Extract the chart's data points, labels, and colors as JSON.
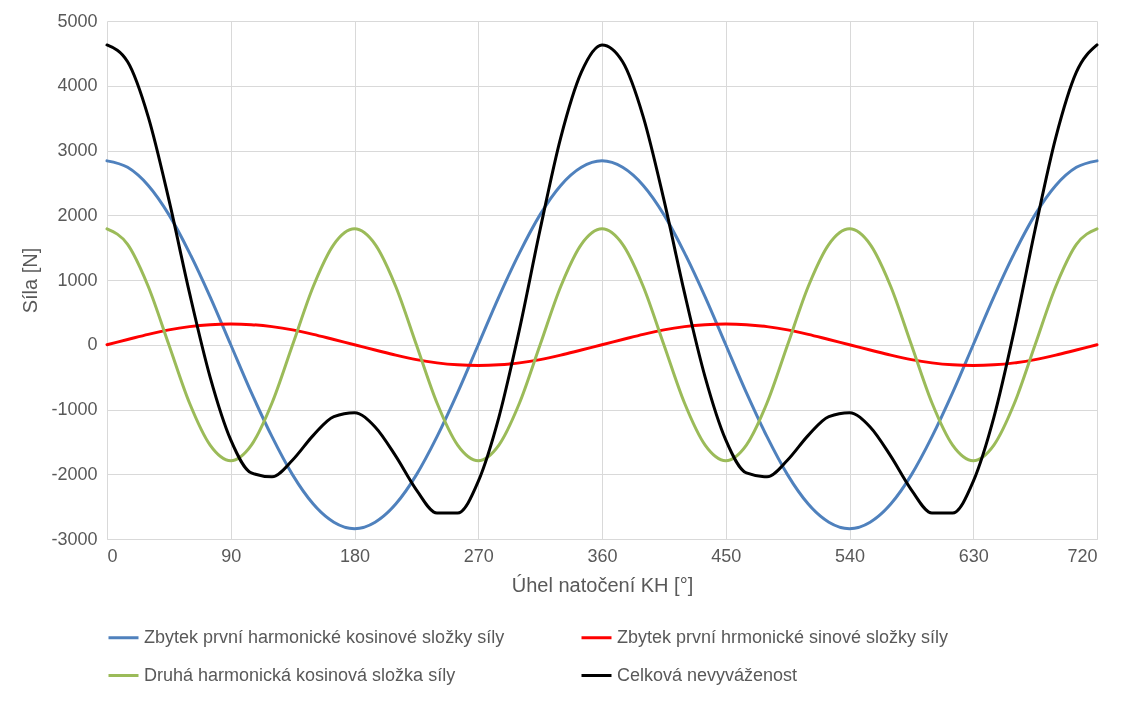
{
  "chart_data": {
    "type": "line",
    "xlabel": "Úhel natočení KH [°]",
    "ylabel": "Síla [N]",
    "x": [
      0,
      15,
      30,
      45,
      60,
      75,
      90,
      105,
      120,
      135,
      150,
      165,
      180,
      195,
      210,
      225,
      240,
      255,
      270,
      285,
      300,
      315,
      330,
      345,
      360,
      375,
      390,
      405,
      420,
      435,
      450,
      465,
      480,
      495,
      510,
      525,
      540,
      555,
      570,
      585,
      600,
      615,
      630,
      645,
      660,
      675,
      690,
      705,
      720
    ],
    "xlim": [
      0,
      720
    ],
    "xticks": [
      0,
      90,
      180,
      270,
      360,
      450,
      540,
      630,
      720
    ],
    "ylim": [
      -3000,
      5000
    ],
    "yticks": [
      -3000,
      -2000,
      -1000,
      0,
      1000,
      2000,
      3000,
      4000,
      5000
    ],
    "grid": true,
    "legend": "bottom",
    "marker": "none",
    "line_style": "solid",
    "series": [
      {
        "name": "Zbytek první harmonické kosinové složky síly",
        "color": "#4f81bd",
        "values": [
          2840,
          2740,
          2460,
          2010,
          1420,
          740,
          0,
          -740,
          -1420,
          -2010,
          -2460,
          -2740,
          -2840,
          -2740,
          -2460,
          -2010,
          -1420,
          -740,
          0,
          740,
          1420,
          2010,
          2460,
          2740,
          2840,
          2740,
          2460,
          2010,
          1420,
          740,
          0,
          -740,
          -1420,
          -2010,
          -2460,
          -2740,
          -2840,
          -2740,
          -2460,
          -2010,
          -1420,
          -740,
          0,
          740,
          1420,
          2010,
          2460,
          2740,
          2840
        ]
      },
      {
        "name": "Zbytek první hrmonické sinové složky síly",
        "color": "#ff0000",
        "values": [
          0,
          80,
          160,
          230,
          280,
          310,
          320,
          310,
          280,
          230,
          160,
          80,
          0,
          -80,
          -160,
          -230,
          -280,
          -310,
          -320,
          -310,
          -280,
          -230,
          -160,
          -80,
          0,
          80,
          160,
          230,
          280,
          310,
          320,
          310,
          280,
          230,
          160,
          80,
          0,
          -80,
          -160,
          -230,
          -280,
          -310,
          -320,
          -310,
          -280,
          -230,
          -160,
          -80,
          0
        ]
      },
      {
        "name": "Druhá harmonická kosinová složka síly",
        "color": "#9bbb59",
        "values": [
          1790,
          1550,
          900,
          0,
          -900,
          -1550,
          -1790,
          -1550,
          -900,
          0,
          900,
          1550,
          1790,
          1550,
          900,
          0,
          -900,
          -1550,
          -1790,
          -1550,
          -900,
          0,
          900,
          1550,
          1790,
          1550,
          900,
          0,
          -900,
          -1550,
          -1790,
          -1550,
          -900,
          0,
          900,
          1550,
          1790,
          1550,
          900,
          0,
          -900,
          -1550,
          -1790,
          -1550,
          -900,
          0,
          900,
          1550,
          1790
        ]
      },
      {
        "name": "Celková nevyváženost",
        "color": "#000000",
        "values": [
          4630,
          4370,
          3520,
          2240,
          800,
          -500,
          -1470,
          -1980,
          -2040,
          -1780,
          -1400,
          -1110,
          -1050,
          -1270,
          -1720,
          -2240,
          -2600,
          -2600,
          -2110,
          -1120,
          240,
          1780,
          3200,
          4210,
          4630,
          4370,
          3520,
          2240,
          800,
          -500,
          -1470,
          -1980,
          -2040,
          -1780,
          -1400,
          -1110,
          -1050,
          -1270,
          -1720,
          -2240,
          -2600,
          -2600,
          -2110,
          -1120,
          240,
          1780,
          3200,
          4210,
          4630
        ]
      }
    ]
  }
}
